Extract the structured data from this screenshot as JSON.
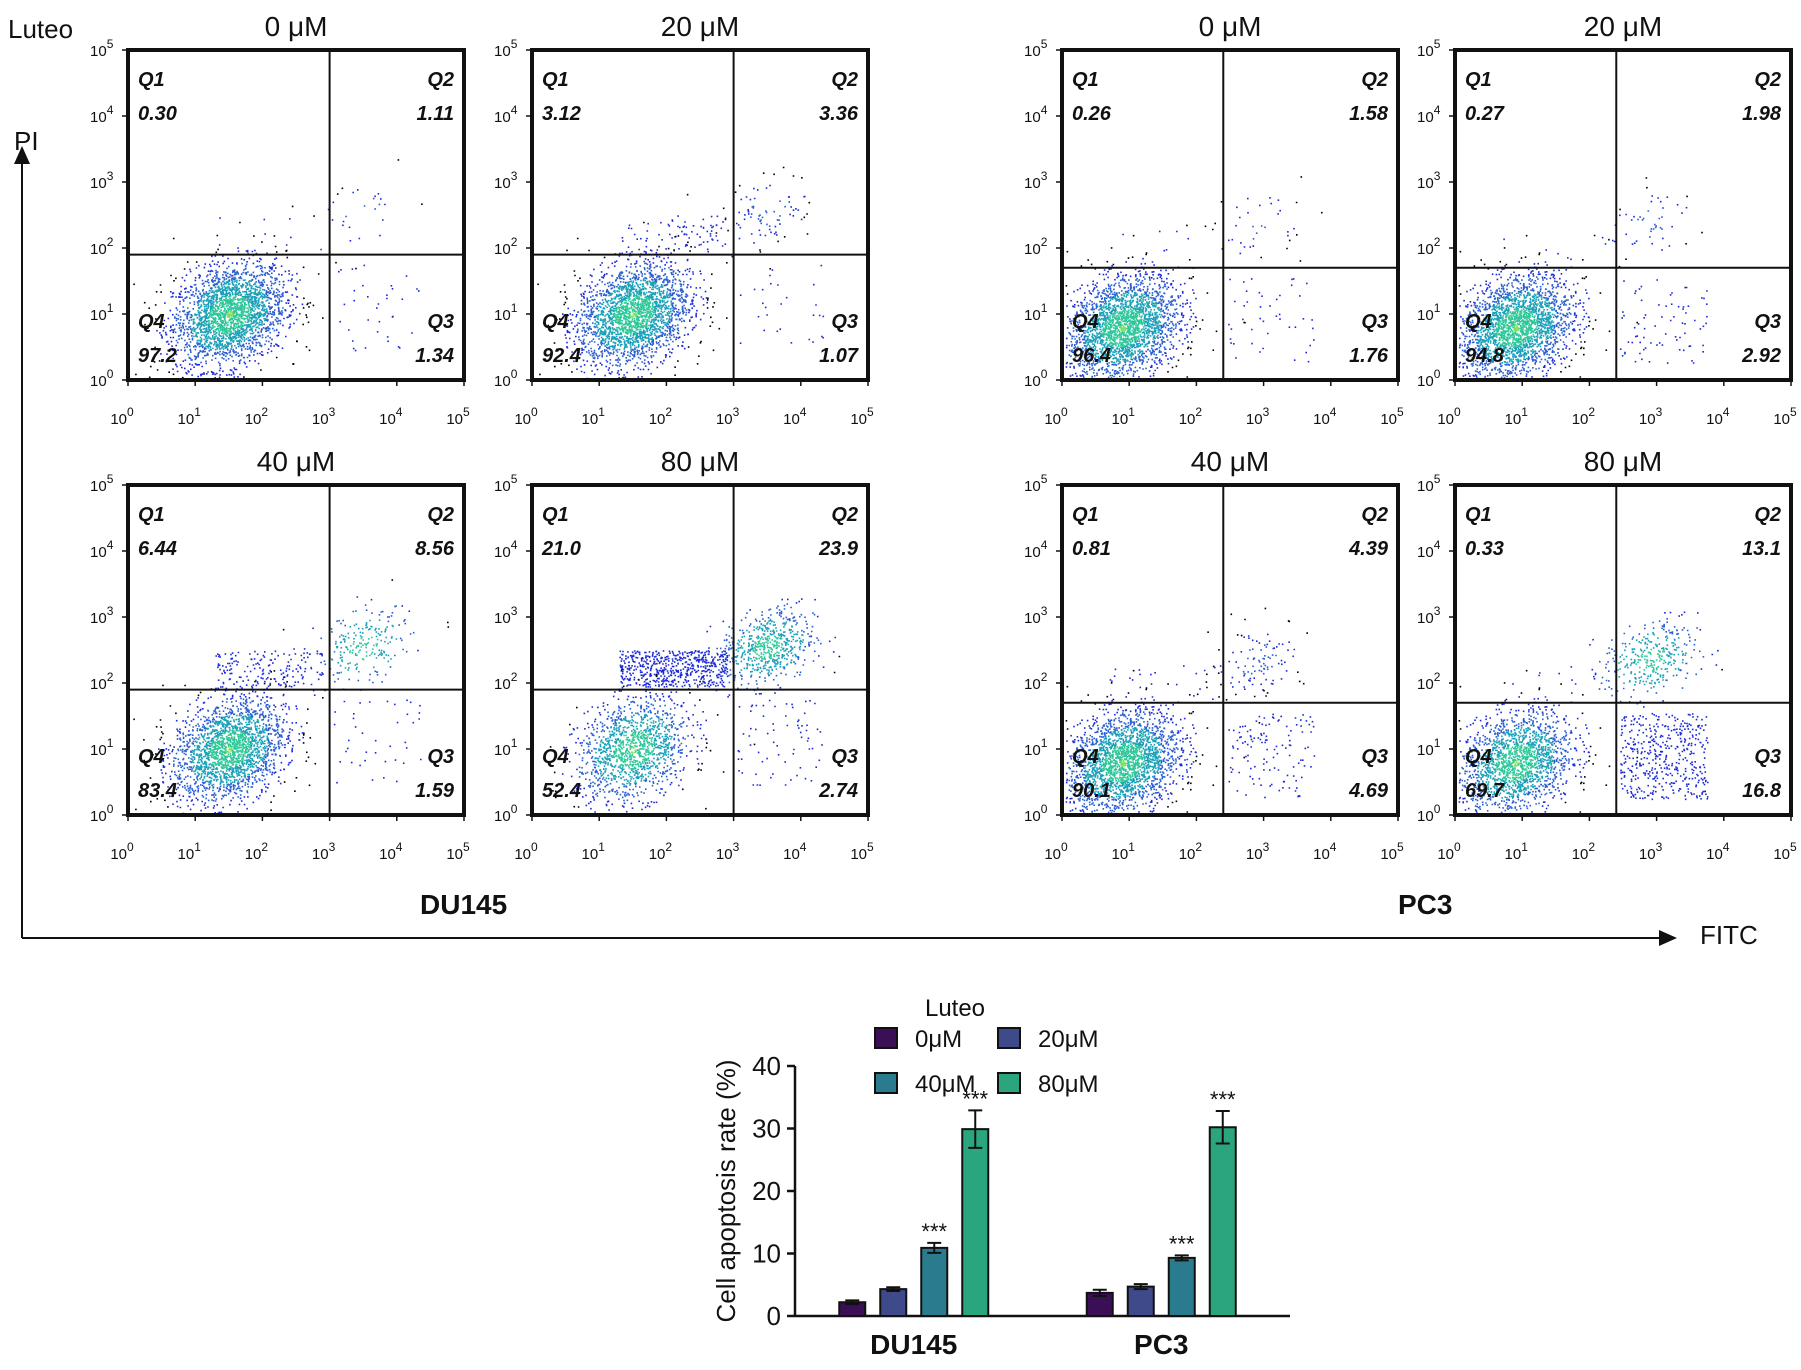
{
  "figure": {
    "treatment_label": "Luteo",
    "y_axis_label": "PI",
    "x_axis_label": "FITC"
  },
  "chart_data": [
    {
      "type": "scatter",
      "cell_line": "DU145",
      "quadrant_labels": [
        "Q1",
        "Q2",
        "Q3",
        "Q4"
      ],
      "log_ticks": [
        "0",
        "1",
        "2",
        "3",
        "4",
        "5"
      ],
      "axis_range": [
        0,
        5
      ],
      "panels": [
        {
          "title": "0 μM",
          "gate_x": 3.0,
          "gate_y": 1.9,
          "q1": "0.30",
          "q2": "1.11",
          "q3": "1.34",
          "q4": "97.2"
        },
        {
          "title": "20 μM",
          "gate_x": 3.0,
          "gate_y": 1.9,
          "q1": "3.12",
          "q2": "3.36",
          "q3": "1.07",
          "q4": "92.4"
        },
        {
          "title": "40 μM",
          "gate_x": 3.0,
          "gate_y": 1.9,
          "q1": "6.44",
          "q2": "8.56",
          "q3": "1.59",
          "q4": "83.4"
        },
        {
          "title": "80 μM",
          "gate_x": 3.0,
          "gate_y": 1.9,
          "q1": "21.0",
          "q2": "23.9",
          "q3": "2.74",
          "q4": "52.4"
        }
      ]
    },
    {
      "type": "scatter",
      "cell_line": "PC3",
      "quadrant_labels": [
        "Q1",
        "Q2",
        "Q3",
        "Q4"
      ],
      "log_ticks": [
        "0",
        "1",
        "2",
        "3",
        "4",
        "5"
      ],
      "axis_range": [
        0,
        5
      ],
      "panels": [
        {
          "title": "0 μM",
          "gate_x": 2.4,
          "gate_y": 1.7,
          "q1": "0.26",
          "q2": "1.58",
          "q3": "1.76",
          "q4": "96.4"
        },
        {
          "title": "20 μM",
          "gate_x": 2.4,
          "gate_y": 1.7,
          "q1": "0.27",
          "q2": "1.98",
          "q3": "2.92",
          "q4": "94.8"
        },
        {
          "title": "40 μM",
          "gate_x": 2.4,
          "gate_y": 1.7,
          "q1": "0.81",
          "q2": "4.39",
          "q3": "4.69",
          "q4": "90.1"
        },
        {
          "title": "80 μM",
          "gate_x": 2.4,
          "gate_y": 1.7,
          "q1": "0.33",
          "q2": "13.1",
          "q3": "16.8",
          "q4": "69.7"
        }
      ]
    },
    {
      "type": "bar",
      "title": "",
      "ylabel": "Cell apoptosis rate (%)",
      "ylim": [
        0,
        40
      ],
      "yticks": [
        "0",
        "10",
        "20",
        "30",
        "40"
      ],
      "legend_title": "Luteo",
      "legend_position": "top",
      "categories": [
        "DU145",
        "PC3"
      ],
      "series": [
        {
          "name": "0μM",
          "color": "#3b0f56",
          "values": [
            2.2,
            3.7
          ],
          "errors": [
            0.3,
            0.5
          ],
          "sig": [
            "",
            ""
          ]
        },
        {
          "name": "20μM",
          "color": "#3f4a8a",
          "values": [
            4.3,
            4.7
          ],
          "errors": [
            0.3,
            0.4
          ],
          "sig": [
            "",
            ""
          ]
        },
        {
          "name": "40μM",
          "color": "#2a7b8e",
          "values": [
            10.9,
            9.3
          ],
          "errors": [
            0.8,
            0.4
          ],
          "sig": [
            "***",
            "***"
          ]
        },
        {
          "name": "80μM",
          "color": "#2aa57e",
          "values": [
            29.9,
            30.2
          ],
          "errors": [
            3.0,
            2.6
          ],
          "sig": [
            "***",
            "***"
          ]
        }
      ]
    }
  ]
}
